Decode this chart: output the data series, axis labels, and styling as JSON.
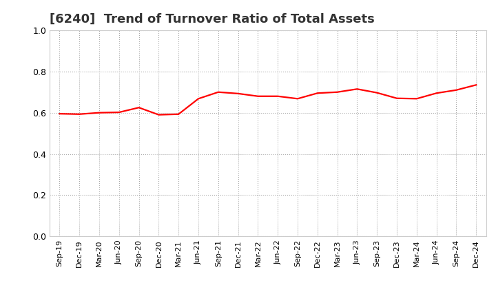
{
  "title": "[6240]  Trend of Turnover Ratio of Total Assets",
  "title_fontsize": 13,
  "title_fontweight": "bold",
  "title_color": "#333333",
  "line_color": "#ff0000",
  "line_width": 1.6,
  "background_color": "#ffffff",
  "grid_color": "#aaaaaa",
  "ylim": [
    0.0,
    1.0
  ],
  "yticks": [
    0.0,
    0.2,
    0.4,
    0.6,
    0.8,
    1.0
  ],
  "labels": [
    "Sep-19",
    "Dec-19",
    "Mar-20",
    "Jun-20",
    "Sep-20",
    "Dec-20",
    "Mar-21",
    "Jun-21",
    "Sep-21",
    "Dec-21",
    "Mar-22",
    "Jun-22",
    "Sep-22",
    "Dec-22",
    "Mar-23",
    "Jun-23",
    "Sep-23",
    "Dec-23",
    "Mar-24",
    "Jun-24",
    "Sep-24",
    "Dec-24"
  ],
  "values": [
    0.595,
    0.593,
    0.6,
    0.602,
    0.625,
    0.59,
    0.593,
    0.668,
    0.7,
    0.693,
    0.68,
    0.68,
    0.668,
    0.695,
    0.7,
    0.715,
    0.697,
    0.67,
    0.668,
    0.695,
    0.71,
    0.735
  ]
}
